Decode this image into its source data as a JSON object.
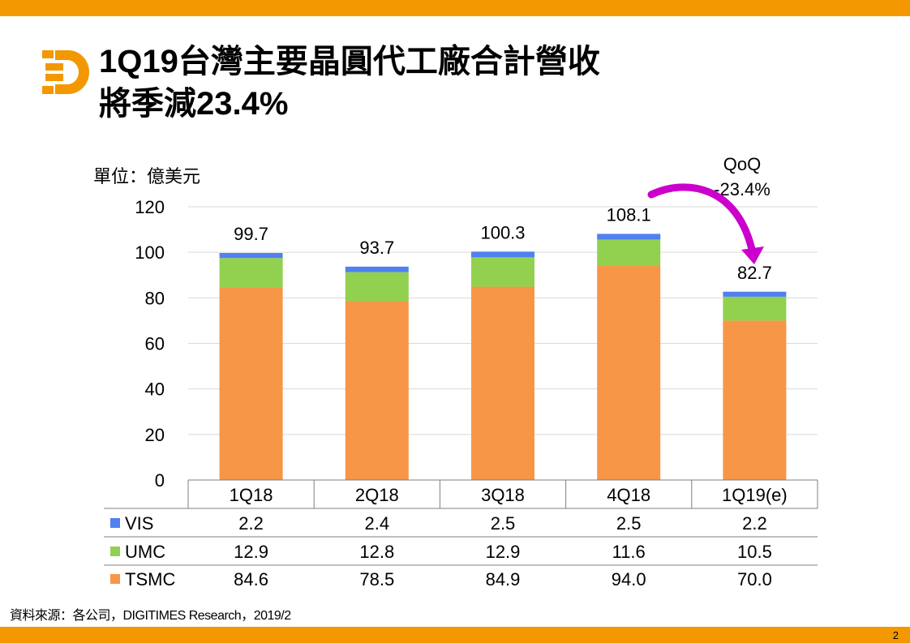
{
  "title": {
    "line1": "1Q19台灣主要晶圓代工廠合計營收",
    "line2": "將季減23.4%"
  },
  "unit_label": "單位：億美元",
  "source": "資料來源：各公司，DIGITIMES Research，2019/2",
  "page_number": "2",
  "annotation": {
    "line1": "QoQ",
    "line2": "-23.4%"
  },
  "colors": {
    "TSMC": "#f79646",
    "UMC": "#92d050",
    "VIS": "#4f81f0",
    "accent": "#f39800",
    "arrow": "#cc00cc"
  },
  "chart_data": {
    "type": "bar",
    "stacked": true,
    "categories": [
      "1Q18",
      "2Q18",
      "3Q18",
      "4Q18",
      "1Q19(e)"
    ],
    "series": [
      {
        "name": "TSMC",
        "values": [
          84.6,
          78.5,
          84.9,
          94.0,
          70.0
        ],
        "labels": [
          "84.6",
          "78.5",
          "84.9",
          "94.0",
          "70.0"
        ]
      },
      {
        "name": "UMC",
        "values": [
          12.9,
          12.8,
          12.9,
          11.6,
          10.5
        ],
        "labels": [
          "12.9",
          "12.8",
          "12.9",
          "11.6",
          "10.5"
        ]
      },
      {
        "name": "VIS",
        "values": [
          2.2,
          2.4,
          2.5,
          2.5,
          2.2
        ],
        "labels": [
          "2.2",
          "2.4",
          "2.5",
          "2.5",
          "2.2"
        ]
      }
    ],
    "totals": [
      "99.7",
      "93.7",
      "100.3",
      "108.1",
      "82.7"
    ],
    "yticks": [
      "0",
      "20",
      "40",
      "60",
      "80",
      "100",
      "120"
    ],
    "ylim": [
      0,
      120
    ],
    "grid": true,
    "data_table": true
  }
}
